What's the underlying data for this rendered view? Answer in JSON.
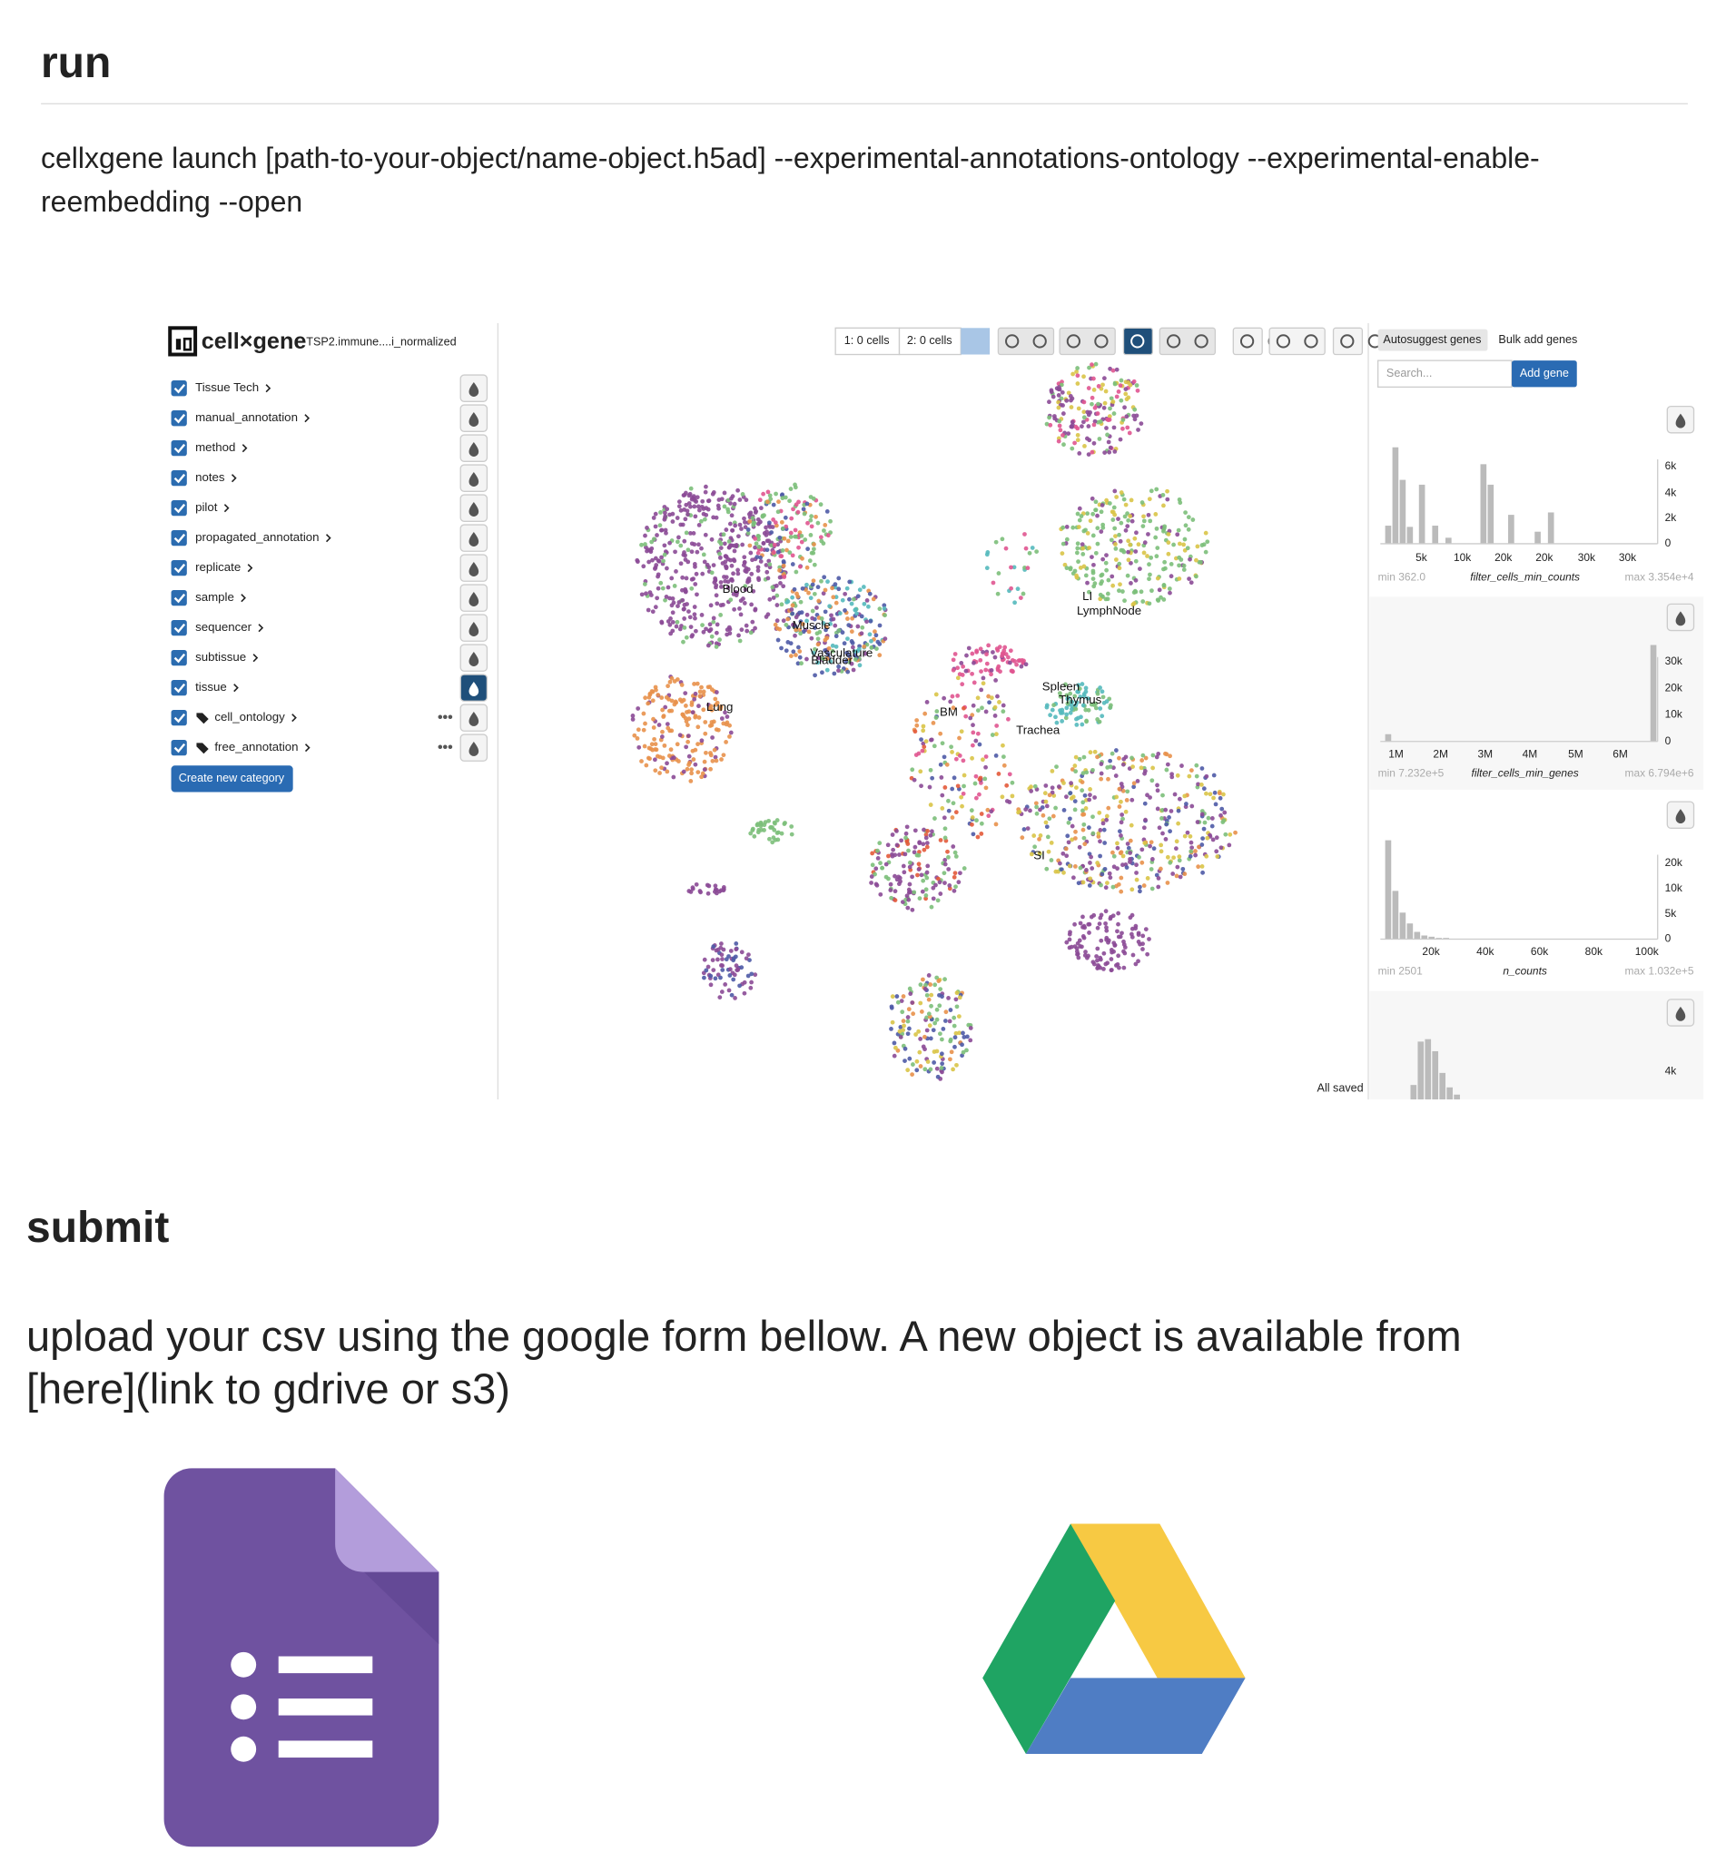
{
  "sections": [
    {
      "heading": "run",
      "text": "cellxgene launch [path-to-your-object/name-object.h5ad] --experimental-annotations-ontology --experimental-enable-reembedding --open"
    },
    {
      "heading": "submit",
      "text": "upload your csv using the google form bellow. A new object is available from [here](link to gdrive or s3)"
    }
  ],
  "app": {
    "logo": "cell×gene",
    "dataset": "TSP2.immune....i_normalized",
    "categories": [
      "Tissue Tech",
      "manual_annotation",
      "method",
      "notes",
      "pilot",
      "propagated_annotation",
      "replicate",
      "sample",
      "sequencer",
      "subtissue",
      "tissue",
      "cell_ontology",
      "free_annotation"
    ],
    "create_button": "Create new category",
    "toolbar": [
      "1: 0 cells",
      "2: 0 cells"
    ],
    "gene_tabs": [
      "Autosuggest genes",
      "Bulk add genes"
    ],
    "search_placeholder": "Search...",
    "add_gene": "Add gene",
    "cluster_labels": [
      "Blood",
      "Muscle",
      "Vasculature",
      "Bladder",
      "Lung",
      "BM",
      "LI",
      "LymphNode",
      "Spleen",
      "Thymus",
      "Trachea",
      "SI"
    ],
    "histograms": [
      {
        "name": "filter_cells_min_counts",
        "min": "min 362.0",
        "max": "max 3.354e+4",
        "xticks": [
          "5k",
          "10k",
          "20k",
          "20k",
          "30k",
          "30k"
        ],
        "yticks": [
          "6k",
          "4k",
          "2k",
          "0"
        ]
      },
      {
        "name": "filter_cells_min_genes",
        "min": "min 7.232e+5",
        "max": "max 6.794e+6",
        "xticks": [
          "1M",
          "2M",
          "3M",
          "4M",
          "5M",
          "6M"
        ],
        "yticks": [
          "30k",
          "20k",
          "10k",
          "0"
        ]
      },
      {
        "name": "n_counts",
        "min": "min 2501",
        "max": "max 1.032e+5",
        "xticks": [
          "20k",
          "40k",
          "60k",
          "80k",
          "100k"
        ],
        "yticks": [
          "20k",
          "10k",
          "5k",
          "0"
        ]
      },
      {
        "yticks": [
          "4k"
        ]
      }
    ],
    "status": "All saved"
  }
}
